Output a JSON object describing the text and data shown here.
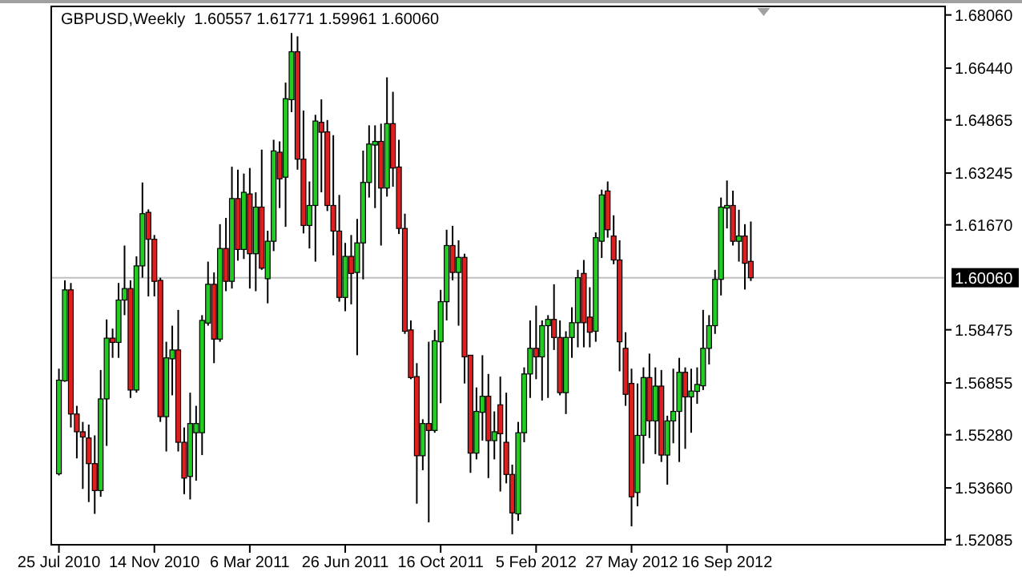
{
  "chart_data": {
    "type": "candlestick",
    "title": "GBPUSD,Weekly  1.60557 1.61771 1.59961 1.60060",
    "colors": [
      "#22cc22",
      "#22cc22",
      "#dd1f1f",
      "#dd1f1f",
      "#dd1f1f",
      "#dd1f1f",
      "#dd1f1f",
      "#22cc22",
      "#22cc22",
      "#dd1f1f",
      "#22cc22",
      "#22cc22",
      "#dd1f1f",
      "#22cc22",
      "#22cc22",
      "#dd1f1f",
      "#dd1f1f",
      "#dd1f1f",
      "#22cc22",
      "#22cc22",
      "#dd1f1f",
      "#dd1f1f",
      "#22cc22",
      "#22cc22",
      "#22cc22",
      "#22cc22",
      "#dd1f1f",
      "#22cc22",
      "#dd1f1f",
      "#22cc22",
      "#dd1f1f",
      "#22cc22",
      "#dd1f1f",
      "#22cc22",
      "#dd1f1f",
      "#22cc22",
      "#22cc22",
      "#dd1f1f",
      "#22cc22",
      "#22cc22",
      "#dd1f1f",
      "#dd1f1f",
      "#22cc22",
      "#22cc22",
      "#dd1f1f",
      "#dd1f1f",
      "#dd1f1f",
      "#dd1f1f",
      "#22cc22",
      "#dd1f1f",
      "#22cc22",
      "#22cc22",
      "#22cc22",
      "#22cc22",
      "#dd1f1f",
      "#22cc22",
      "#dd1f1f",
      "#dd1f1f",
      "#dd1f1f",
      "#dd1f1f",
      "#dd1f1f",
      "#22cc22",
      "#dd1f1f",
      "#22cc22",
      "#22cc22",
      "#22cc22",
      "#dd1f1f",
      "#22cc22",
      "#dd1f1f",
      "#dd1f1f",
      "#22cc22",
      "#22cc22",
      "#dd1f1f",
      "#22cc22",
      "#dd1f1f",
      "#dd1f1f",
      "#dd1f1f",
      "#22cc22",
      "#22cc22",
      "#22cc22",
      "#dd1f1f",
      "#22cc22",
      "#22cc22",
      "#dd1f1f",
      "#dd1f1f",
      "#22cc22",
      "#22cc22",
      "#22cc22",
      "#dd1f1f",
      "#dd1f1f",
      "#22cc22",
      "#22cc22",
      "#dd1f1f",
      "#dd1f1f",
      "#dd1f1f",
      "#dd1f1f",
      "#dd1f1f",
      "#22cc22",
      "#22cc22",
      "#dd1f1f",
      "#22cc22",
      "#dd1f1f",
      "#22cc22",
      "#22cc22",
      "#22cc22",
      "#dd1f1f",
      "#22cc22",
      "#22cc22",
      "#22cc22",
      "#22cc22",
      "#22cc22",
      "#22cc22",
      "#22cc22",
      "#dd1f1f",
      "#22cc22",
      "#dd1f1f",
      "#dd1f1f"
    ],
    "xlim": [
      "2010-07-16",
      "2013-05-30"
    ],
    "xticks": [
      {
        "value": "2010-07-25",
        "label": "25 Jul 2010"
      },
      {
        "value": "2010-11-14",
        "label": "14 Nov 2010"
      },
      {
        "value": "2011-03-06",
        "label": "6 Mar 2011"
      },
      {
        "value": "2011-06-26",
        "label": "26 Jun 2011"
      },
      {
        "value": "2011-10-16",
        "label": "16 Oct 2011"
      },
      {
        "value": "2012-02-05",
        "label": "5 Feb 2012"
      },
      {
        "value": "2012-05-27",
        "label": "27 May 2012"
      },
      {
        "value": "2012-09-16",
        "label": "16 Sep 2012"
      }
    ],
    "ylim": [
      1.5193,
      1.6832
    ],
    "yticks": [
      {
        "value": 1.6806,
        "label": "1.68060"
      },
      {
        "value": 1.6644,
        "label": "1.66440"
      },
      {
        "value": 1.64865,
        "label": "1.64865"
      },
      {
        "value": 1.63245,
        "label": "1.63245"
      },
      {
        "value": 1.6167,
        "label": "1.61670"
      },
      {
        "value": 1.58475,
        "label": "1.58475"
      },
      {
        "value": 1.56855,
        "label": "1.56855"
      },
      {
        "value": 1.5528,
        "label": "1.55280"
      },
      {
        "value": 1.5366,
        "label": "1.53660"
      },
      {
        "value": 1.52085,
        "label": "1.52085"
      }
    ],
    "ref_lines": [
      {
        "axis": "y",
        "value": 1.6006,
        "label": "1.60060",
        "color": "#c0c0c0"
      }
    ],
    "grid": false,
    "ohlc": [
      [
        1.5409,
        1.5729,
        1.5404,
        1.5694
      ],
      [
        1.5692,
        1.5998,
        1.5689,
        1.5969
      ],
      [
        1.5969,
        1.599,
        1.555,
        1.5591
      ],
      [
        1.5591,
        1.5616,
        1.5456,
        1.5537
      ],
      [
        1.5537,
        1.5567,
        1.5363,
        1.5521
      ],
      [
        1.5518,
        1.5559,
        1.5323,
        1.544
      ],
      [
        1.544,
        1.5526,
        1.5287,
        1.5358
      ],
      [
        1.5358,
        1.5725,
        1.5339,
        1.5637
      ],
      [
        1.5637,
        1.5879,
        1.5494,
        1.5822
      ],
      [
        1.5822,
        1.5851,
        1.5762,
        1.5809
      ],
      [
        1.5809,
        1.599,
        1.5762,
        1.5938
      ],
      [
        1.5938,
        1.6104,
        1.5892,
        1.5973
      ],
      [
        1.5973,
        1.5998,
        1.564,
        1.5664
      ],
      [
        1.5664,
        1.6071,
        1.5656,
        1.6042
      ],
      [
        1.6042,
        1.6296,
        1.6006,
        1.6201
      ],
      [
        1.6205,
        1.6214,
        1.5949,
        1.6123
      ],
      [
        1.6123,
        1.6136,
        1.5949,
        1.5995
      ],
      [
        1.5998,
        1.6006,
        1.5567,
        1.5583
      ],
      [
        1.5583,
        1.5811,
        1.5477,
        1.5762
      ],
      [
        1.5759,
        1.586,
        1.5648,
        1.5786
      ],
      [
        1.5786,
        1.5908,
        1.5477,
        1.5505
      ],
      [
        1.5505,
        1.555,
        1.5347,
        1.5396
      ],
      [
        1.5401,
        1.5656,
        1.5331,
        1.5562
      ],
      [
        1.5534,
        1.5616,
        1.5388,
        1.5562
      ],
      [
        1.5534,
        1.5892,
        1.5466,
        1.5876
      ],
      [
        1.5868,
        1.6055,
        1.586,
        1.5986
      ],
      [
        1.5986,
        1.6022,
        1.5746,
        1.5819
      ],
      [
        1.5819,
        1.6169,
        1.5811,
        1.6095
      ],
      [
        1.6095,
        1.6188,
        1.5965,
        1.5995
      ],
      [
        1.5995,
        1.6344,
        1.5973,
        1.6247
      ],
      [
        1.6247,
        1.6335,
        1.6058,
        1.6092
      ],
      [
        1.6092,
        1.6323,
        1.6063,
        1.6266
      ],
      [
        1.6261,
        1.634,
        1.5973,
        1.6079
      ],
      [
        1.6079,
        1.6266,
        1.5965,
        1.6221
      ],
      [
        1.6221,
        1.6396,
        1.603,
        1.6035
      ],
      [
        1.6003,
        1.6149,
        1.5928,
        1.6117
      ],
      [
        1.6117,
        1.6426,
        1.6087,
        1.6392
      ],
      [
        1.6388,
        1.6421,
        1.6218,
        1.6307
      ],
      [
        1.6312,
        1.66,
        1.6161,
        1.6551
      ],
      [
        1.6548,
        1.6751,
        1.651,
        1.6694
      ],
      [
        1.6694,
        1.6741,
        1.6335,
        1.6367
      ],
      [
        1.6367,
        1.6515,
        1.6141,
        1.6165
      ],
      [
        1.6165,
        1.6299,
        1.6095,
        1.6226
      ],
      [
        1.6226,
        1.6502,
        1.6055,
        1.6483
      ],
      [
        1.6479,
        1.6549,
        1.6266,
        1.6449
      ],
      [
        1.645,
        1.6486,
        1.6209,
        1.6226
      ],
      [
        1.6226,
        1.644,
        1.6074,
        1.6148
      ],
      [
        1.6148,
        1.6258,
        1.5933,
        1.5946
      ],
      [
        1.5946,
        1.6112,
        1.5904,
        1.6071
      ],
      [
        1.6071,
        1.6136,
        1.5925,
        1.6019
      ],
      [
        1.6022,
        1.6185,
        1.577,
        1.6112
      ],
      [
        1.6112,
        1.6393,
        1.6001,
        1.6296
      ],
      [
        1.6296,
        1.647,
        1.625,
        1.6413
      ],
      [
        1.641,
        1.647,
        1.6218,
        1.6421
      ],
      [
        1.6421,
        1.6475,
        1.6104,
        1.6279
      ],
      [
        1.6279,
        1.6616,
        1.6253,
        1.6475
      ],
      [
        1.6475,
        1.6572,
        1.6283,
        1.634
      ],
      [
        1.6343,
        1.6426,
        1.6139,
        1.6156
      ],
      [
        1.6156,
        1.6201,
        1.5835,
        1.5843
      ],
      [
        1.5847,
        1.5876,
        1.5697,
        1.5702
      ],
      [
        1.5705,
        1.5746,
        1.5318,
        1.5464
      ],
      [
        1.5464,
        1.5575,
        1.542,
        1.5562
      ],
      [
        1.5562,
        1.5811,
        1.5261,
        1.5541
      ],
      [
        1.5541,
        1.5847,
        1.5534,
        1.5814
      ],
      [
        1.5811,
        1.5969,
        1.5624,
        1.5933
      ],
      [
        1.5933,
        1.6152,
        1.5876,
        1.6104
      ],
      [
        1.6104,
        1.6164,
        1.5998,
        1.6022
      ],
      [
        1.6022,
        1.612,
        1.586,
        1.6068
      ],
      [
        1.6068,
        1.6079,
        1.5684,
        1.5765
      ],
      [
        1.577,
        1.577,
        1.5412,
        1.5472
      ],
      [
        1.5472,
        1.5672,
        1.5453,
        1.5599
      ],
      [
        1.5596,
        1.577,
        1.551,
        1.5645
      ],
      [
        1.5645,
        1.5713,
        1.5396,
        1.551
      ],
      [
        1.551,
        1.5599,
        1.5453,
        1.5537
      ],
      [
        1.5619,
        1.5705,
        1.5355,
        1.5531
      ],
      [
        1.5505,
        1.5656,
        1.538,
        1.5407
      ],
      [
        1.5407,
        1.5437,
        1.5225,
        1.529
      ],
      [
        1.5287,
        1.5567,
        1.5266,
        1.5534
      ],
      [
        1.5534,
        1.5733,
        1.5505,
        1.5713
      ],
      [
        1.5713,
        1.5876,
        1.564,
        1.5791
      ],
      [
        1.5791,
        1.5921,
        1.5697,
        1.5765
      ],
      [
        1.5765,
        1.5876,
        1.5632,
        1.586
      ],
      [
        1.586,
        1.5892,
        1.564,
        1.5879
      ],
      [
        1.5879,
        1.5986,
        1.5786,
        1.5824
      ],
      [
        1.5824,
        1.5876,
        1.5648,
        1.5656
      ],
      [
        1.5656,
        1.5843,
        1.5591,
        1.5824
      ],
      [
        1.5824,
        1.5916,
        1.5762,
        1.5869
      ],
      [
        1.5869,
        1.603,
        1.5794,
        1.6006
      ],
      [
        1.6019,
        1.606,
        1.5794,
        1.5869
      ],
      [
        1.5886,
        1.5977,
        1.5794,
        1.584
      ],
      [
        1.5843,
        1.6144,
        1.5811,
        1.6128
      ],
      [
        1.6117,
        1.6274,
        1.6066,
        1.6258
      ],
      [
        1.627,
        1.6299,
        1.6128,
        1.6152
      ],
      [
        1.6133,
        1.6196,
        1.6047,
        1.606
      ],
      [
        1.606,
        1.612,
        1.5721,
        1.5811
      ],
      [
        1.5791,
        1.584,
        1.5616,
        1.5651
      ],
      [
        1.5684,
        1.5729,
        1.5249,
        1.5339
      ],
      [
        1.5352,
        1.5684,
        1.531,
        1.5526
      ],
      [
        1.5526,
        1.5733,
        1.544,
        1.5702
      ],
      [
        1.5702,
        1.5775,
        1.5518,
        1.557
      ],
      [
        1.557,
        1.5733,
        1.5469,
        1.5676
      ],
      [
        1.5676,
        1.5725,
        1.5445,
        1.5466
      ],
      [
        1.5466,
        1.5586,
        1.5376,
        1.557
      ],
      [
        1.557,
        1.5729,
        1.5502,
        1.5599
      ],
      [
        1.5599,
        1.5762,
        1.5445,
        1.5718
      ],
      [
        1.5718,
        1.5733,
        1.5485,
        1.5643
      ],
      [
        1.5643,
        1.5729,
        1.5534,
        1.5661
      ],
      [
        1.566,
        1.5733,
        1.5622,
        1.5681
      ],
      [
        1.5677,
        1.5908,
        1.5664,
        1.5791
      ],
      [
        1.5791,
        1.5892,
        1.5742,
        1.586
      ],
      [
        1.586,
        1.603,
        1.5835,
        1.6001
      ],
      [
        1.6001,
        1.625,
        1.5952,
        1.6221
      ],
      [
        1.6218,
        1.6302,
        1.6156,
        1.6226
      ],
      [
        1.6226,
        1.6271,
        1.6104,
        1.6117
      ],
      [
        1.6117,
        1.6213,
        1.6055,
        1.6133
      ],
      [
        1.6133,
        1.6169,
        1.597,
        1.605
      ],
      [
        1.60557,
        1.61771,
        1.59961,
        1.6006
      ]
    ],
    "x": [
      "2010-07-25",
      "2010-08-01",
      "2010-08-08",
      "2010-08-15",
      "2010-08-22",
      "2010-08-29",
      "2010-09-05",
      "2010-09-12",
      "2010-09-19",
      "2010-09-26",
      "2010-10-03",
      "2010-10-10",
      "2010-10-17",
      "2010-10-24",
      "2010-10-31",
      "2010-11-07",
      "2010-11-14",
      "2010-11-21",
      "2010-11-28",
      "2010-12-05",
      "2010-12-12",
      "2010-12-19",
      "2010-12-26",
      "2011-01-02",
      "2011-01-09",
      "2011-01-16",
      "2011-01-23",
      "2011-01-30",
      "2011-02-06",
      "2011-02-13",
      "2011-02-20",
      "2011-02-27",
      "2011-03-06",
      "2011-03-13",
      "2011-03-20",
      "2011-03-27",
      "2011-04-03",
      "2011-04-10",
      "2011-04-17",
      "2011-04-24",
      "2011-05-01",
      "2011-05-08",
      "2011-05-15",
      "2011-05-22",
      "2011-05-29",
      "2011-06-05",
      "2011-06-12",
      "2011-06-19",
      "2011-06-26",
      "2011-07-03",
      "2011-07-10",
      "2011-07-17",
      "2011-07-24",
      "2011-07-31",
      "2011-08-07",
      "2011-08-14",
      "2011-08-21",
      "2011-08-28",
      "2011-09-04",
      "2011-09-11",
      "2011-09-18",
      "2011-09-25",
      "2011-10-02",
      "2011-10-09",
      "2011-10-16",
      "2011-10-23",
      "2011-10-30",
      "2011-11-06",
      "2011-11-13",
      "2011-11-20",
      "2011-11-27",
      "2011-12-04",
      "2011-12-11",
      "2011-12-18",
      "2011-12-25",
      "2012-01-01",
      "2012-01-08",
      "2012-01-15",
      "2012-01-22",
      "2012-01-29",
      "2012-02-05",
      "2012-02-12",
      "2012-02-19",
      "2012-02-26",
      "2012-03-04",
      "2012-03-11",
      "2012-03-18",
      "2012-03-25",
      "2012-04-01",
      "2012-04-08",
      "2012-04-15",
      "2012-04-22",
      "2012-04-29",
      "2012-05-06",
      "2012-05-13",
      "2012-05-20",
      "2012-05-27",
      "2012-06-03",
      "2012-06-10",
      "2012-06-17",
      "2012-06-24",
      "2012-07-01",
      "2012-07-08",
      "2012-07-15",
      "2012-07-22",
      "2012-07-29",
      "2012-08-05",
      "2012-08-12",
      "2012-08-19",
      "2012-08-26",
      "2012-09-02",
      "2012-09-09",
      "2012-09-16",
      "2012-09-23",
      "2012-09-30",
      "2012-10-07",
      "2012-10-14"
    ]
  }
}
